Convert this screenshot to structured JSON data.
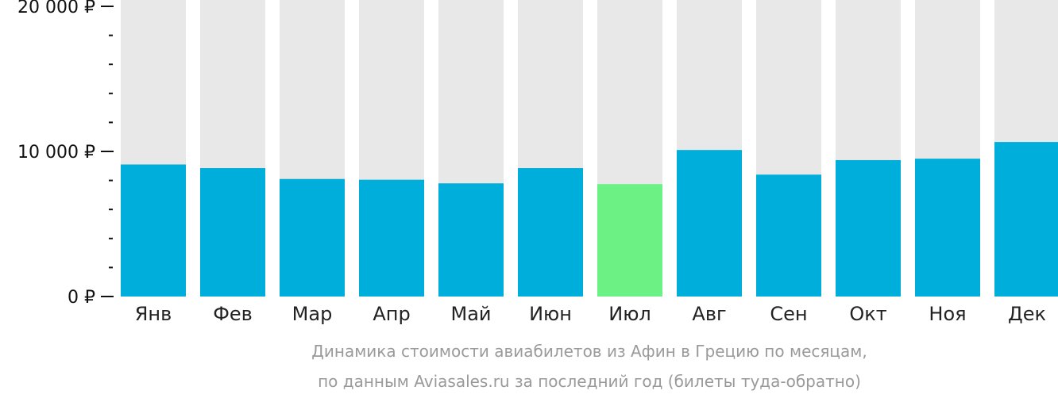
{
  "chart_data": {
    "type": "bar",
    "categories": [
      "Янв",
      "Фев",
      "Мар",
      "Апр",
      "Май",
      "Июн",
      "Июл",
      "Авг",
      "Сен",
      "Окт",
      "Ноя",
      "Дек"
    ],
    "values": [
      9100,
      8850,
      8100,
      8050,
      7800,
      8850,
      7750,
      10100,
      8400,
      9400,
      9500,
      10650
    ],
    "ylim": [
      0,
      20000
    ],
    "yticks": [
      {
        "value": 0,
        "label": "0 ₽"
      },
      {
        "value": 10000,
        "label": "10 000 ₽"
      },
      {
        "value": 20000,
        "label": "20 000 ₽"
      }
    ],
    "minor_tick_step": 2000,
    "highlight_index": 6,
    "caption_lines": [
      "Динамика стоимости авиабилетов из Афин в Грецию по месяцам,",
      "по данным Aviasales.ru за последний год (билеты туда-обратно)"
    ],
    "colors": {
      "bar": "#00AEDB",
      "highlight": "#6CF184",
      "background_bar": "#E8E8E8",
      "axis": "#111111"
    }
  }
}
